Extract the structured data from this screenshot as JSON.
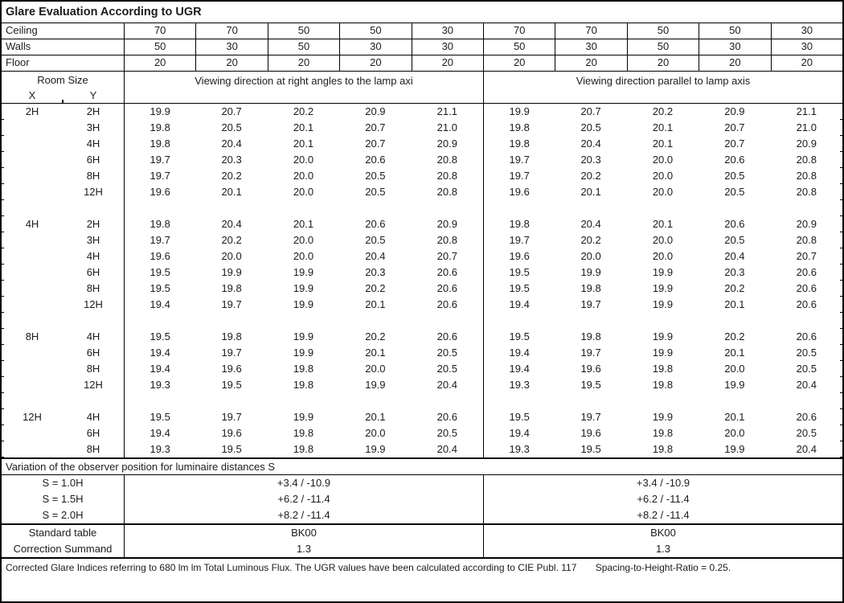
{
  "title": "Glare Evaluation According to UGR",
  "colors": {
    "border": "#000000",
    "text": "#1c1c1c"
  },
  "surface_rows": [
    {
      "label": "Ceiling",
      "values": [
        "70",
        "70",
        "50",
        "50",
        "30",
        "70",
        "70",
        "50",
        "50",
        "30"
      ]
    },
    {
      "label": "Walls",
      "values": [
        "50",
        "30",
        "50",
        "30",
        "30",
        "50",
        "30",
        "50",
        "30",
        "30"
      ]
    },
    {
      "label": "Floor",
      "values": [
        "20",
        "20",
        "20",
        "20",
        "20",
        "20",
        "20",
        "20",
        "20",
        "20"
      ]
    }
  ],
  "header": {
    "room_size": "Room Size",
    "x_label": "X",
    "y_label": "Y",
    "left_viewing": "Viewing direction at right angles to the lamp axi",
    "right_viewing": "Viewing direction parallel to lamp axis"
  },
  "ugr_sections": [
    {
      "x": "2H",
      "rows": [
        {
          "y": "2H",
          "values": [
            "19.9",
            "20.7",
            "20.2",
            "20.9",
            "21.1",
            "19.9",
            "20.7",
            "20.2",
            "20.9",
            "21.1"
          ]
        },
        {
          "y": "3H",
          "values": [
            "19.8",
            "20.5",
            "20.1",
            "20.7",
            "21.0",
            "19.8",
            "20.5",
            "20.1",
            "20.7",
            "21.0"
          ]
        },
        {
          "y": "4H",
          "values": [
            "19.8",
            "20.4",
            "20.1",
            "20.7",
            "20.9",
            "19.8",
            "20.4",
            "20.1",
            "20.7",
            "20.9"
          ]
        },
        {
          "y": "6H",
          "values": [
            "19.7",
            "20.3",
            "20.0",
            "20.6",
            "20.8",
            "19.7",
            "20.3",
            "20.0",
            "20.6",
            "20.8"
          ]
        },
        {
          "y": "8H",
          "values": [
            "19.7",
            "20.2",
            "20.0",
            "20.5",
            "20.8",
            "19.7",
            "20.2",
            "20.0",
            "20.5",
            "20.8"
          ]
        },
        {
          "y": "12H",
          "values": [
            "19.6",
            "20.1",
            "20.0",
            "20.5",
            "20.8",
            "19.6",
            "20.1",
            "20.0",
            "20.5",
            "20.8"
          ]
        }
      ]
    },
    {
      "x": "4H",
      "rows": [
        {
          "y": "2H",
          "values": [
            "19.8",
            "20.4",
            "20.1",
            "20.6",
            "20.9",
            "19.8",
            "20.4",
            "20.1",
            "20.6",
            "20.9"
          ]
        },
        {
          "y": "3H",
          "values": [
            "19.7",
            "20.2",
            "20.0",
            "20.5",
            "20.8",
            "19.7",
            "20.2",
            "20.0",
            "20.5",
            "20.8"
          ]
        },
        {
          "y": "4H",
          "values": [
            "19.6",
            "20.0",
            "20.0",
            "20.4",
            "20.7",
            "19.6",
            "20.0",
            "20.0",
            "20.4",
            "20.7"
          ]
        },
        {
          "y": "6H",
          "values": [
            "19.5",
            "19.9",
            "19.9",
            "20.3",
            "20.6",
            "19.5",
            "19.9",
            "19.9",
            "20.3",
            "20.6"
          ]
        },
        {
          "y": "8H",
          "values": [
            "19.5",
            "19.8",
            "19.9",
            "20.2",
            "20.6",
            "19.5",
            "19.8",
            "19.9",
            "20.2",
            "20.6"
          ]
        },
        {
          "y": "12H",
          "values": [
            "19.4",
            "19.7",
            "19.9",
            "20.1",
            "20.6",
            "19.4",
            "19.7",
            "19.9",
            "20.1",
            "20.6"
          ]
        }
      ]
    },
    {
      "x": "8H",
      "rows": [
        {
          "y": "4H",
          "values": [
            "19.5",
            "19.8",
            "19.9",
            "20.2",
            "20.6",
            "19.5",
            "19.8",
            "19.9",
            "20.2",
            "20.6"
          ]
        },
        {
          "y": "6H",
          "values": [
            "19.4",
            "19.7",
            "19.9",
            "20.1",
            "20.5",
            "19.4",
            "19.7",
            "19.9",
            "20.1",
            "20.5"
          ]
        },
        {
          "y": "8H",
          "values": [
            "19.4",
            "19.6",
            "19.8",
            "20.0",
            "20.5",
            "19.4",
            "19.6",
            "19.8",
            "20.0",
            "20.5"
          ]
        },
        {
          "y": "12H",
          "values": [
            "19.3",
            "19.5",
            "19.8",
            "19.9",
            "20.4",
            "19.3",
            "19.5",
            "19.8",
            "19.9",
            "20.4"
          ]
        }
      ]
    },
    {
      "x": "12H",
      "rows": [
        {
          "y": "4H",
          "values": [
            "19.5",
            "19.7",
            "19.9",
            "20.1",
            "20.6",
            "19.5",
            "19.7",
            "19.9",
            "20.1",
            "20.6"
          ]
        },
        {
          "y": "6H",
          "values": [
            "19.4",
            "19.6",
            "19.8",
            "20.0",
            "20.5",
            "19.4",
            "19.6",
            "19.8",
            "20.0",
            "20.5"
          ]
        },
        {
          "y": "8H",
          "values": [
            "19.3",
            "19.5",
            "19.8",
            "19.9",
            "20.4",
            "19.3",
            "19.5",
            "19.8",
            "19.9",
            "20.4"
          ]
        }
      ]
    }
  ],
  "variation": {
    "heading": "Variation of the observer position for luminaire distances S",
    "rows": [
      {
        "label": "S = 1.0H",
        "left": "+3.4 / -10.9",
        "right": "+3.4 / -10.9"
      },
      {
        "label": "S = 1.5H",
        "left": "+6.2 / -11.4",
        "right": "+6.2 / -11.4"
      },
      {
        "label": "S = 2.0H",
        "left": "+8.2 / -11.4",
        "right": "+8.2 / -11.4"
      }
    ]
  },
  "summary_rows": [
    {
      "label": "Standard table",
      "left": "BK00",
      "right": "BK00"
    },
    {
      "label": "Correction Summand",
      "left": "1.3",
      "right": "1.3"
    }
  ],
  "footer": {
    "text": "Corrected Glare Indices referring to 680 lm lm Total Luminous Flux. The UGR values have been calculated according to CIE Publ. 117",
    "ratio": "Spacing-to-Height-Ratio = 0.25."
  }
}
